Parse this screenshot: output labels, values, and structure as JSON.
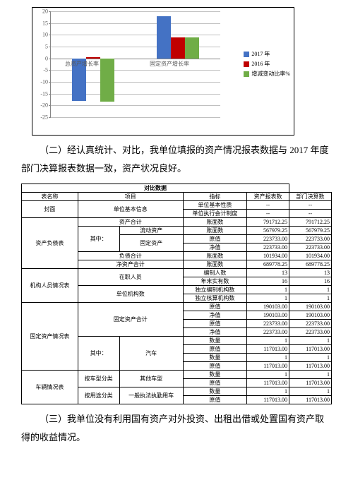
{
  "chart": {
    "type": "bar",
    "ylim": [
      -25,
      20
    ],
    "ytick_step": 5,
    "grid_color": "#c0c0c0",
    "axis_color": "#868686",
    "series": [
      {
        "name": "2017 年",
        "color": "#4472c4"
      },
      {
        "name": "2016 年",
        "color": "#c00000"
      },
      {
        "name": "增减变动比率%",
        "color": "#70ad47"
      }
    ],
    "categories": [
      {
        "label": "总资产增长率",
        "values": [
          -18,
          0.5,
          -18.5
        ]
      },
      {
        "label": "固定资产增长率",
        "values": [
          18,
          9,
          9
        ]
      }
    ]
  },
  "para1": "（二）经认真统计、对比，我单位填报的资产情况报表数据与 2017 年度部门决算报表数据一致，资产状况良好。",
  "para2": "（三）我单位没有利用国有资产对外投资、出租出借或处置国有资产取得的收益情况。",
  "t": {
    "h1": "对比数据",
    "h_name": "表名称",
    "h_item": "项目",
    "h_ind": "指标",
    "h_a": "资产报表数",
    "h_b": "部门决算数",
    "cover": "封面",
    "basic": "单位基本信息",
    "nature": "单位基本性质",
    "acct": "单位执行会计制度",
    "dash": "--",
    "sheet_bal": "资产负债表",
    "asset_total": "资产合计",
    "book": "账面数",
    "of_which": "其中：",
    "liquid": "流动资产",
    "fixed": "固定资产",
    "orig": "原值",
    "net": "净值",
    "liab_total": "负债合计",
    "net_asset": "净资产合计",
    "sheet_ppl": "机构人员情况表",
    "on_duty": "在职人员",
    "auth": "编制人数",
    "actual": "年末实有数",
    "inst_count": "单位机构数",
    "indep": "独立编制机构数",
    "indep_acct": "独立核算机构数",
    "sheet_fa": "固定资产情况表",
    "fa_total": "固定资产合计",
    "p_begin": "期初数",
    "p_end": "期末数",
    "car": "汽车",
    "qty": "数量",
    "sheet_veh": "车辆情况表",
    "by_type": "按车型分类",
    "other_type": "其他车型",
    "by_use": "按用途分类",
    "law_car": "一般执法执勤用车",
    "v1": "791712.25",
    "v2": "567979.25",
    "v3": "223733.00",
    "v4": "101934.00",
    "v5": "689778.25",
    "n13": "13",
    "n16": "16",
    "n1": "1",
    "v6": "190103.00",
    "v7": "117013.00"
  }
}
